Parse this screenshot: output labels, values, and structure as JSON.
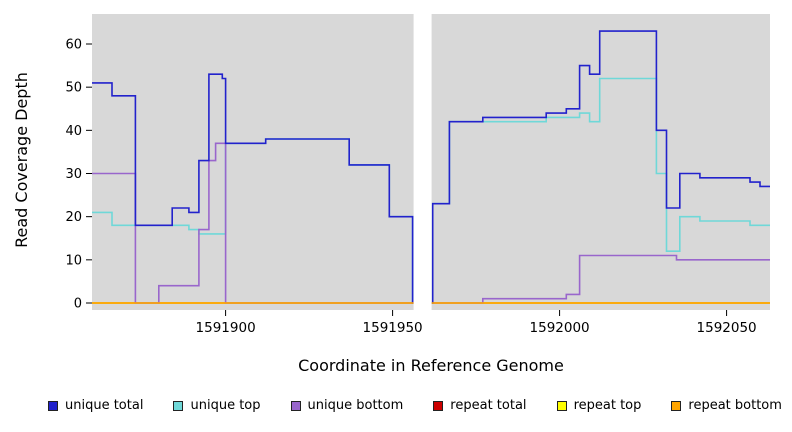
{
  "chart_data": {
    "type": "line",
    "subtype": "step",
    "title": "",
    "xlabel": "Coordinate in Reference Genome",
    "ylabel": "Read Coverage Depth",
    "xlim": [
      1591860,
      1592063
    ],
    "ylim": [
      0,
      67
    ],
    "x_ticks": [
      1591900,
      1591950,
      1592000,
      1592050
    ],
    "y_ticks": [
      0,
      10,
      20,
      30,
      40,
      50,
      60
    ],
    "grid": false,
    "plot_bg": "#d8d8d8",
    "gap_region": [
      1591956.3,
      1591961.7
    ],
    "legend_position": "bottom",
    "series": [
      {
        "name": "unique total",
        "color": "#2222CC",
        "points": [
          [
            1591860,
            51
          ],
          [
            1591866,
            48
          ],
          [
            1591873,
            18
          ],
          [
            1591884,
            22
          ],
          [
            1591889,
            21
          ],
          [
            1591892,
            33
          ],
          [
            1591895,
            53
          ],
          [
            1591899,
            52
          ],
          [
            1591900,
            37
          ],
          [
            1591912,
            38
          ],
          [
            1591937,
            32
          ],
          [
            1591949,
            20
          ],
          [
            1591956,
            0
          ],
          [
            1591962,
            23
          ],
          [
            1591967,
            42
          ],
          [
            1591977,
            43
          ],
          [
            1591996,
            44
          ],
          [
            1592002,
            45
          ],
          [
            1592006,
            55
          ],
          [
            1592009,
            53
          ],
          [
            1592012,
            63
          ],
          [
            1592029,
            40
          ],
          [
            1592032,
            22
          ],
          [
            1592036,
            30
          ],
          [
            1592042,
            29
          ],
          [
            1592057,
            28
          ],
          [
            1592060,
            27
          ]
        ]
      },
      {
        "name": "unique top",
        "color": "#6FD8D8",
        "points": [
          [
            1591860,
            21
          ],
          [
            1591866,
            18
          ],
          [
            1591889,
            17
          ],
          [
            1591892,
            16
          ],
          [
            1591900,
            37
          ],
          [
            1591912,
            38
          ],
          [
            1591937,
            32
          ],
          [
            1591949,
            20
          ],
          [
            1591956,
            0
          ],
          [
            1591962,
            23
          ],
          [
            1591967,
            42
          ],
          [
            1591996,
            43
          ],
          [
            1592006,
            44
          ],
          [
            1592009,
            42
          ],
          [
            1592012,
            52
          ],
          [
            1592029,
            30
          ],
          [
            1592032,
            12
          ],
          [
            1592036,
            20
          ],
          [
            1592042,
            19
          ],
          [
            1592057,
            18
          ]
        ]
      },
      {
        "name": "unique bottom",
        "color": "#9966CC",
        "points": [
          [
            1591860,
            30
          ],
          [
            1591873,
            0
          ],
          [
            1591880,
            4
          ],
          [
            1591892,
            17
          ],
          [
            1591895,
            33
          ],
          [
            1591897,
            37
          ],
          [
            1591900,
            0
          ],
          [
            1591977,
            1
          ],
          [
            1592002,
            2
          ],
          [
            1592006,
            11
          ],
          [
            1592035,
            10
          ]
        ]
      },
      {
        "name": "repeat total",
        "color": "#CC0000",
        "points": [
          [
            1591860,
            0
          ]
        ]
      },
      {
        "name": "repeat top",
        "color": "#FFFF00",
        "points": [
          [
            1591860,
            0
          ]
        ]
      },
      {
        "name": "repeat bottom",
        "color": "#FFA500",
        "points": [
          [
            1591860,
            0
          ]
        ]
      }
    ]
  }
}
